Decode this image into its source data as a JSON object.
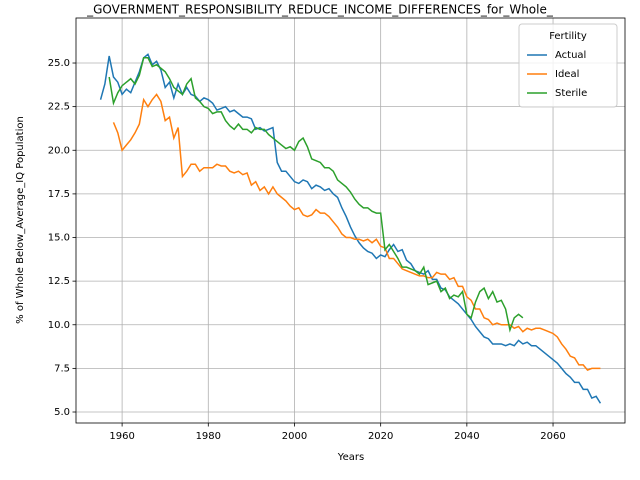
{
  "chart_data": {
    "type": "line",
    "title": "_GOVERNMENT_RESPONSIBILITY_REDUCE_INCOME_DIFFERENCES_for_Whole_",
    "xlabel": "Years",
    "ylabel": "% of Whole Below_Average_IQ Population",
    "legend_title": "Fertility",
    "legend": "upper right",
    "grid": true,
    "xlim": [
      1949.3,
      2076.7
    ],
    "ylim": [
      4.37,
      27.58
    ],
    "xticks": [
      1960,
      1980,
      2000,
      2020,
      2040,
      2060
    ],
    "yticks": [
      {
        "value": 5,
        "label": "5.0"
      },
      7.5,
      {
        "value": 10,
        "label": "10.0"
      },
      12.5,
      {
        "value": 15,
        "label": "15.0"
      },
      17.5,
      {
        "value": 20,
        "label": "20.0"
      },
      22.5,
      {
        "value": 25,
        "label": "25.0"
      }
    ],
    "series": [
      {
        "name": "Actual",
        "color": "#1f77b4",
        "x": [
          1955,
          1956,
          1957,
          1958,
          1959,
          1960,
          1961,
          1962,
          1963,
          1964,
          1965,
          1966,
          1967,
          1968,
          1969,
          1970,
          1971,
          1972,
          1973,
          1974,
          1975,
          1976,
          1977,
          1978,
          1979,
          1980,
          1981,
          1982,
          1983,
          1984,
          1985,
          1986,
          1987,
          1988,
          1989,
          1990,
          1991,
          1992,
          1993,
          1994,
          1995,
          1996,
          1997,
          1998,
          1999,
          2000,
          2001,
          2002,
          2003,
          2004,
          2005,
          2006,
          2007,
          2008,
          2009,
          2010,
          2011,
          2012,
          2013,
          2014,
          2015,
          2016,
          2017,
          2018,
          2019,
          2020,
          2021,
          2022,
          2023,
          2024,
          2025,
          2026,
          2027,
          2028,
          2029,
          2030,
          2031,
          2032,
          2033,
          2034,
          2035,
          2036,
          2037,
          2038,
          2039,
          2040,
          2041,
          2042,
          2043,
          2044,
          2045,
          2046,
          2047,
          2048,
          2049,
          2050,
          2051,
          2052,
          2053,
          2054,
          2055,
          2056,
          2057,
          2058,
          2059,
          2060,
          2061,
          2062,
          2063,
          2064,
          2065,
          2066,
          2067,
          2068,
          2069,
          2070,
          2071
        ],
        "values": [
          22.9,
          23.8,
          25.4,
          24.2,
          23.9,
          23.2,
          23.5,
          23.3,
          23.9,
          24.5,
          25.3,
          25.5,
          24.9,
          25.1,
          24.6,
          23.6,
          23.9,
          23.0,
          23.8,
          23.2,
          23.6,
          23.2,
          23.1,
          22.8,
          23.0,
          22.9,
          22.7,
          22.3,
          22.4,
          22.5,
          22.2,
          22.3,
          22.1,
          21.9,
          21.9,
          21.8,
          21.2,
          21.3,
          21.1,
          21.2,
          21.3,
          19.3,
          18.8,
          18.8,
          18.5,
          18.2,
          18.1,
          18.3,
          18.2,
          17.8,
          18.0,
          17.9,
          17.7,
          17.8,
          17.5,
          17.3,
          16.7,
          16.2,
          15.6,
          15.1,
          14.7,
          14.4,
          14.2,
          14.1,
          13.8,
          14.0,
          13.9,
          14.3,
          14.6,
          14.2,
          14.3,
          13.7,
          13.5,
          13.1,
          13.0,
          12.9,
          13.1,
          12.6,
          12.6,
          12.1,
          12.0,
          11.6,
          11.4,
          11.2,
          10.9,
          10.6,
          10.3,
          9.9,
          9.6,
          9.3,
          9.2,
          8.9,
          8.9,
          8.9,
          8.8,
          8.9,
          8.8,
          9.1,
          8.9,
          9.0,
          8.8,
          8.8,
          8.6,
          8.4,
          8.2,
          8.0,
          7.8,
          7.5,
          7.2,
          7.0,
          6.7,
          6.7,
          6.3,
          6.3,
          5.8,
          5.9,
          5.5
        ]
      },
      {
        "name": "Ideal",
        "color": "#ff7f0e",
        "x": [
          1958,
          1959,
          1960,
          1961,
          1962,
          1963,
          1964,
          1965,
          1966,
          1967,
          1968,
          1969,
          1970,
          1971,
          1972,
          1973,
          1974,
          1975,
          1976,
          1977,
          1978,
          1979,
          1980,
          1981,
          1982,
          1983,
          1984,
          1985,
          1986,
          1987,
          1988,
          1989,
          1990,
          1991,
          1992,
          1993,
          1994,
          1995,
          1996,
          1997,
          1998,
          1999,
          2000,
          2001,
          2002,
          2003,
          2004,
          2005,
          2006,
          2007,
          2008,
          2009,
          2010,
          2011,
          2012,
          2013,
          2014,
          2015,
          2016,
          2017,
          2018,
          2019,
          2020,
          2021,
          2022,
          2023,
          2024,
          2025,
          2026,
          2027,
          2028,
          2029,
          2030,
          2031,
          2032,
          2033,
          2034,
          2035,
          2036,
          2037,
          2038,
          2039,
          2040,
          2041,
          2042,
          2043,
          2044,
          2045,
          2046,
          2047,
          2048,
          2049,
          2050,
          2051,
          2052,
          2053,
          2054,
          2055,
          2056,
          2057,
          2058,
          2059,
          2060,
          2061,
          2062,
          2063,
          2064,
          2065,
          2066,
          2067,
          2068,
          2069,
          2070,
          2071
        ],
        "values": [
          21.6,
          21.0,
          20.0,
          20.3,
          20.6,
          21.0,
          21.5,
          22.9,
          22.5,
          22.9,
          23.2,
          22.8,
          21.7,
          21.9,
          20.7,
          21.3,
          18.5,
          18.8,
          19.2,
          19.2,
          18.8,
          19.0,
          19.0,
          19.0,
          19.2,
          19.1,
          19.1,
          18.8,
          18.7,
          18.8,
          18.6,
          18.7,
          18.0,
          18.2,
          17.7,
          17.9,
          17.5,
          17.9,
          17.5,
          17.3,
          17.1,
          16.8,
          16.6,
          16.7,
          16.3,
          16.2,
          16.3,
          16.6,
          16.4,
          16.4,
          16.2,
          15.9,
          15.6,
          15.2,
          15.0,
          15.0,
          14.9,
          14.9,
          14.8,
          14.9,
          14.7,
          14.9,
          14.5,
          14.4,
          13.8,
          13.8,
          13.5,
          13.2,
          13.1,
          13.0,
          12.9,
          12.8,
          12.8,
          12.7,
          12.7,
          13.0,
          12.9,
          12.9,
          12.6,
          12.7,
          12.2,
          12.2,
          11.6,
          11.4,
          10.9,
          10.9,
          10.4,
          10.3,
          10.0,
          10.1,
          10.0,
          10.0,
          10.0,
          9.8,
          9.9,
          9.6,
          9.8,
          9.7,
          9.8,
          9.8,
          9.7,
          9.6,
          9.5,
          9.3,
          8.9,
          8.6,
          8.2,
          8.1,
          7.7,
          7.7,
          7.4,
          7.5,
          7.5,
          7.5
        ]
      },
      {
        "name": "Sterile",
        "color": "#2ca02c",
        "x": [
          1957,
          1958,
          1959,
          1960,
          1961,
          1962,
          1963,
          1964,
          1965,
          1966,
          1967,
          1968,
          1969,
          1970,
          1971,
          1972,
          1973,
          1974,
          1975,
          1976,
          1977,
          1978,
          1979,
          1980,
          1981,
          1982,
          1983,
          1984,
          1985,
          1986,
          1987,
          1988,
          1989,
          1990,
          1991,
          1992,
          1993,
          1994,
          1995,
          1996,
          1997,
          1998,
          1999,
          2000,
          2001,
          2002,
          2003,
          2004,
          2005,
          2006,
          2007,
          2008,
          2009,
          2010,
          2011,
          2012,
          2013,
          2014,
          2015,
          2016,
          2017,
          2018,
          2019,
          2020,
          2021,
          2022,
          2023,
          2024,
          2025,
          2026,
          2027,
          2028,
          2029,
          2030,
          2031,
          2032,
          2033,
          2034,
          2035,
          2036,
          2037,
          2038,
          2039,
          2040,
          2041,
          2042,
          2043,
          2044,
          2045,
          2046,
          2047,
          2048,
          2049,
          2050,
          2051,
          2052,
          2053
        ],
        "values": [
          24.2,
          22.7,
          23.3,
          23.7,
          23.9,
          24.1,
          23.8,
          24.3,
          25.3,
          25.3,
          24.8,
          24.9,
          24.7,
          24.5,
          24.1,
          23.6,
          23.4,
          23.2,
          23.8,
          24.1,
          23.0,
          22.8,
          22.5,
          22.4,
          22.1,
          22.2,
          22.2,
          21.7,
          21.4,
          21.2,
          21.5,
          21.2,
          21.2,
          21.0,
          21.3,
          21.2,
          21.2,
          20.9,
          20.7,
          20.5,
          20.3,
          20.1,
          20.2,
          20.0,
          20.5,
          20.7,
          20.2,
          19.5,
          19.4,
          19.3,
          19.0,
          19.0,
          18.8,
          18.3,
          18.1,
          17.9,
          17.6,
          17.2,
          16.9,
          16.7,
          16.7,
          16.5,
          16.4,
          16.4,
          14.3,
          14.6,
          14.2,
          13.8,
          13.3,
          13.3,
          13.2,
          13.1,
          12.9,
          13.3,
          12.3,
          12.4,
          12.5,
          11.9,
          12.1,
          11.5,
          11.7,
          11.6,
          11.9,
          10.6,
          10.4,
          11.3,
          11.9,
          12.1,
          11.5,
          11.9,
          11.3,
          11.4,
          10.9,
          9.7,
          10.4,
          10.6,
          10.4
        ]
      }
    ]
  }
}
